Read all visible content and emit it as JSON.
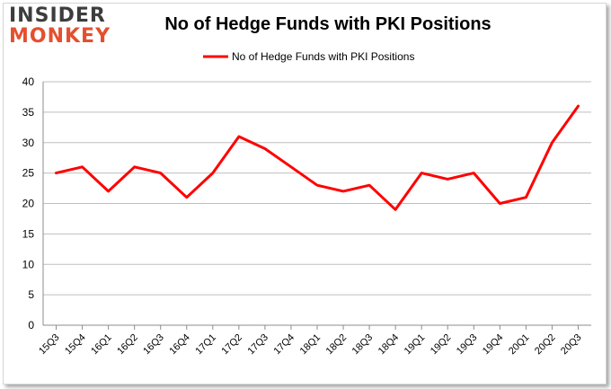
{
  "logo": {
    "line1": "INSIDER",
    "line2": "MONKEY"
  },
  "colors": {
    "series": "#ff0000",
    "logo_accent": "#e4502e",
    "grid": "#bfbfbf"
  },
  "chart_data": {
    "type": "line",
    "title": "No of Hedge Funds with PKI Positions",
    "xlabel": "",
    "ylabel": "",
    "ylim": [
      0,
      40
    ],
    "yticks": [
      0,
      5,
      10,
      15,
      20,
      25,
      30,
      35,
      40
    ],
    "grid": true,
    "legend": "top-center",
    "categories": [
      "15Q3",
      "15Q4",
      "16Q1",
      "16Q2",
      "16Q3",
      "16Q4",
      "17Q1",
      "17Q2",
      "17Q3",
      "17Q4",
      "18Q1",
      "18Q2",
      "18Q3",
      "18Q4",
      "19Q1",
      "19Q2",
      "19Q3",
      "19Q4",
      "20Q1",
      "20Q2",
      "20Q3"
    ],
    "series": [
      {
        "name": "No of Hedge Funds with PKI Positions",
        "color": "#ff0000",
        "values": [
          25,
          26,
          22,
          26,
          25,
          21,
          25,
          31,
          29,
          26,
          23,
          22,
          23,
          19,
          25,
          24,
          25,
          20,
          21,
          30,
          36
        ]
      }
    ]
  }
}
